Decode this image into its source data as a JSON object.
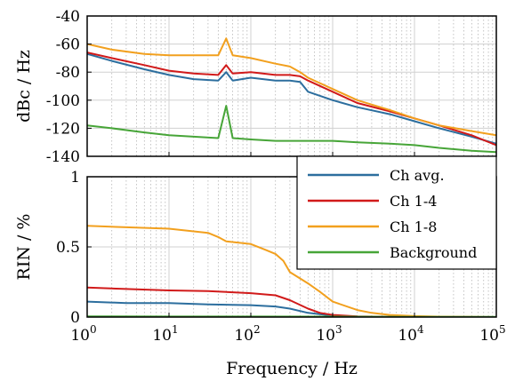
{
  "chart_data": [
    {
      "type": "line",
      "xlabel": "",
      "ylabel": "dBc / Hz",
      "xscale": "log",
      "xlim": [
        1,
        100000
      ],
      "ylim": [
        -140,
        -40
      ],
      "yticks": [
        "-140",
        "-120",
        "-100",
        "-80",
        "-60",
        "-40"
      ],
      "grid": true,
      "series": [
        {
          "name": "Ch avg.",
          "color": "#2c6e9e",
          "x": [
            1,
            2,
            5,
            10,
            20,
            40,
            50,
            60,
            100,
            200,
            300,
            400,
            500,
            1000,
            2000,
            5000,
            10000,
            20000,
            50000,
            100000
          ],
          "y": [
            -67,
            -72,
            -78,
            -82,
            -85,
            -86,
            -80,
            -86,
            -84,
            -86,
            -86,
            -87,
            -94,
            -100,
            -105,
            -110,
            -115,
            -120,
            -126,
            -131
          ]
        },
        {
          "name": "Ch 1-4",
          "color": "#d11a1a",
          "x": [
            1,
            2,
            5,
            10,
            20,
            40,
            50,
            60,
            100,
            200,
            300,
            400,
            500,
            1000,
            2000,
            5000,
            10000,
            20000,
            50000,
            100000
          ],
          "y": [
            -66,
            -70,
            -75,
            -79,
            -81,
            -82,
            -75,
            -81,
            -80,
            -82,
            -82,
            -83,
            -86,
            -94,
            -102,
            -108,
            -113,
            -118,
            -125,
            -132
          ]
        },
        {
          "name": "Ch 1-8",
          "color": "#f2a01e",
          "x": [
            1,
            2,
            5,
            10,
            20,
            40,
            50,
            60,
            100,
            200,
            300,
            400,
            500,
            1000,
            2000,
            5000,
            10000,
            20000,
            50000,
            100000
          ],
          "y": [
            -60,
            -64,
            -67,
            -68,
            -68,
            -68,
            -56,
            -68,
            -70,
            -74,
            -76,
            -80,
            -84,
            -92,
            -100,
            -107,
            -113,
            -118,
            -122,
            -125
          ]
        },
        {
          "name": "Background",
          "color": "#47a538",
          "x": [
            1,
            2,
            5,
            10,
            20,
            40,
            50,
            60,
            100,
            200,
            300,
            400,
            500,
            1000,
            2000,
            5000,
            10000,
            20000,
            50000,
            100000
          ],
          "y": [
            -118,
            -120,
            -123,
            -125,
            -126,
            -127,
            -104,
            -127,
            -128,
            -129,
            -129,
            -129,
            -129,
            -129,
            -130,
            -131,
            -132,
            -134,
            -136,
            -137
          ]
        }
      ]
    },
    {
      "type": "line",
      "xlabel": "Frequency / Hz",
      "ylabel": "RIN / %",
      "xscale": "log",
      "xlim": [
        1,
        100000
      ],
      "ylim": [
        0,
        1
      ],
      "yticks": [
        "0",
        "0.5",
        "1"
      ],
      "xticks": [
        {
          "base": "10",
          "exp": "0"
        },
        {
          "base": "10",
          "exp": "1"
        },
        {
          "base": "10",
          "exp": "2"
        },
        {
          "base": "10",
          "exp": "3"
        },
        {
          "base": "10",
          "exp": "4"
        },
        {
          "base": "10",
          "exp": "5"
        }
      ],
      "grid": true,
      "legend": {
        "placement": "top-right"
      },
      "series": [
        {
          "name": "Ch avg.",
          "color": "#2c6e9e",
          "x": [
            1,
            3,
            10,
            30,
            100,
            200,
            300,
            500,
            1000,
            2000,
            5000,
            10000,
            100000
          ],
          "y": [
            0.11,
            0.1,
            0.1,
            0.09,
            0.085,
            0.075,
            0.06,
            0.03,
            0.01,
            0.004,
            0.002,
            0.001,
            0.0
          ]
        },
        {
          "name": "Ch 1-4",
          "color": "#d11a1a",
          "x": [
            1,
            3,
            10,
            30,
            100,
            200,
            300,
            500,
            700,
            1000,
            2000,
            5000,
            10000,
            100000
          ],
          "y": [
            0.21,
            0.2,
            0.19,
            0.185,
            0.17,
            0.155,
            0.12,
            0.06,
            0.03,
            0.015,
            0.005,
            0.002,
            0.001,
            0.0
          ]
        },
        {
          "name": "Ch 1-8",
          "color": "#f2a01e",
          "x": [
            1,
            3,
            10,
            30,
            40,
            50,
            100,
            150,
            200,
            250,
            300,
            500,
            700,
            1000,
            2000,
            3000,
            5000,
            10000,
            20000,
            50000,
            100000
          ],
          "y": [
            0.65,
            0.64,
            0.63,
            0.6,
            0.57,
            0.54,
            0.52,
            0.48,
            0.45,
            0.4,
            0.32,
            0.24,
            0.18,
            0.11,
            0.05,
            0.03,
            0.015,
            0.007,
            0.003,
            0.001,
            0.0
          ]
        },
        {
          "name": "Background",
          "color": "#47a538",
          "x": [
            1,
            10,
            100,
            1000,
            10000,
            100000
          ],
          "y": [
            0.005,
            0.004,
            0.004,
            0.003,
            0.002,
            0.001
          ]
        }
      ]
    }
  ]
}
